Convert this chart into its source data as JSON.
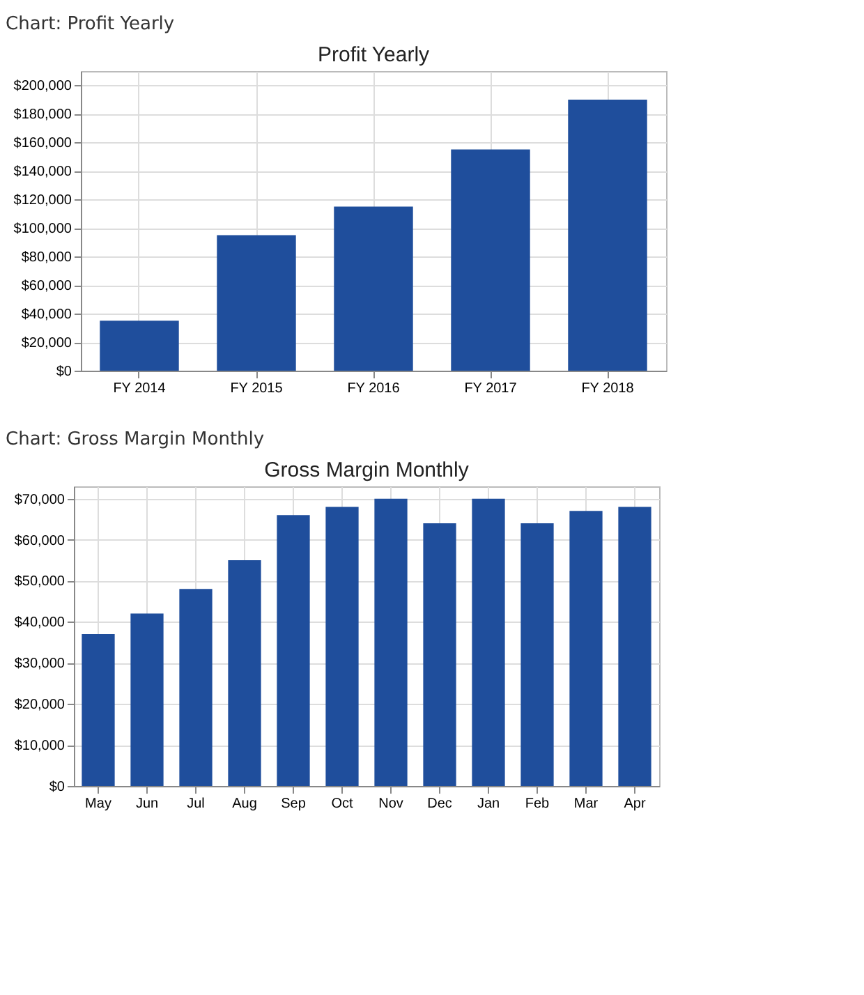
{
  "chart_data": [
    {
      "type": "bar",
      "title": "Profit Yearly",
      "annotations": [
        "Chart: Profit Yearly"
      ],
      "categories": [
        "FY 2014",
        "FY 2015",
        "FY 2016",
        "FY 2017",
        "FY 2018"
      ],
      "series": [
        {
          "color": "#1f4e9c",
          "values": [
            35000,
            95000,
            115000,
            155000,
            190000
          ]
        }
      ],
      "ylim": [
        0,
        210000
      ],
      "yticks": [
        {
          "value": 0,
          "label": "$0"
        },
        {
          "value": 20000,
          "label": "$20,000"
        },
        {
          "value": 40000,
          "label": "$40,000"
        },
        {
          "value": 60000,
          "label": "$60,000"
        },
        {
          "value": 80000,
          "label": "$80,000"
        },
        {
          "value": 100000,
          "label": "$100,000"
        },
        {
          "value": 120000,
          "label": "$120,000"
        },
        {
          "value": 140000,
          "label": "$140,000"
        },
        {
          "value": 160000,
          "label": "$160,000"
        },
        {
          "value": 180000,
          "label": "$180,000"
        },
        {
          "value": 200000,
          "label": "$200,000"
        }
      ],
      "grid": true
    },
    {
      "type": "bar",
      "title": "Gross Margin Monthly",
      "annotations": [
        "Chart: Gross Margin Monthly"
      ],
      "categories": [
        "May",
        "Jun",
        "Jul",
        "Aug",
        "Sep",
        "Oct",
        "Nov",
        "Dec",
        "Jan",
        "Feb",
        "Mar",
        "Apr"
      ],
      "series": [
        {
          "color": "#1f4e9c",
          "values": [
            37000,
            42000,
            48000,
            55000,
            66000,
            68000,
            70000,
            64000,
            70000,
            64000,
            67000,
            68000
          ]
        }
      ],
      "ylim": [
        0,
        73000
      ],
      "yticks": [
        {
          "value": 0,
          "label": "$0"
        },
        {
          "value": 10000,
          "label": "$10,000"
        },
        {
          "value": 20000,
          "label": "$20,000"
        },
        {
          "value": 30000,
          "label": "$30,000"
        },
        {
          "value": 40000,
          "label": "$40,000"
        },
        {
          "value": 50000,
          "label": "$50,000"
        },
        {
          "value": 60000,
          "label": "$60,000"
        },
        {
          "value": 70000,
          "label": "$70,000"
        }
      ],
      "grid": true
    }
  ]
}
